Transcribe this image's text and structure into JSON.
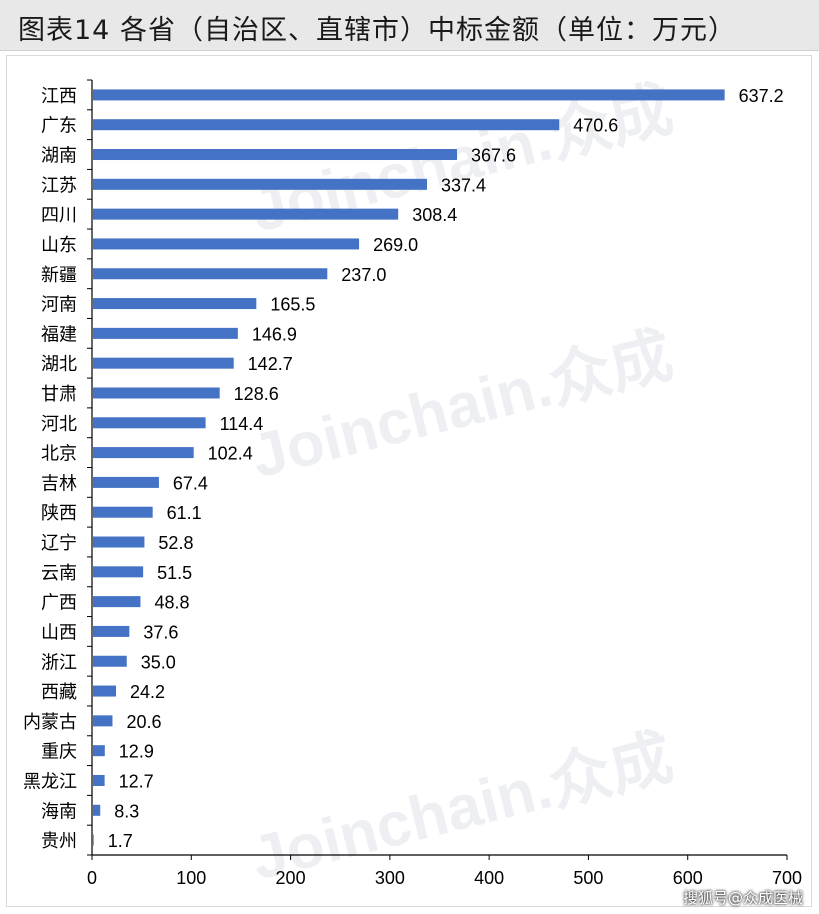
{
  "header": {
    "title": "图表14 各省（自治区、直辖市）中标金额（单位：万元）"
  },
  "watermark": {
    "text": "Joinchain.众成"
  },
  "credit": "搜狐号@众成医械",
  "chart_data": {
    "type": "bar",
    "orientation": "horizontal",
    "categories": [
      "江西",
      "广东",
      "湖南",
      "江苏",
      "四川",
      "山东",
      "新疆",
      "河南",
      "福建",
      "湖北",
      "甘肃",
      "河北",
      "北京",
      "吉林",
      "陕西",
      "辽宁",
      "云南",
      "广西",
      "山西",
      "浙江",
      "西藏",
      "内蒙古",
      "重庆",
      "黑龙江",
      "海南",
      "贵州"
    ],
    "values": [
      637.2,
      470.6,
      367.6,
      337.4,
      308.4,
      269.0,
      237.0,
      165.5,
      146.9,
      142.7,
      128.6,
      114.4,
      102.4,
      67.4,
      61.1,
      52.8,
      51.5,
      48.8,
      37.6,
      35.0,
      24.2,
      20.6,
      12.9,
      12.7,
      8.3,
      1.7
    ],
    "value_labels": [
      "637.2",
      "470.6",
      "367.6",
      "337.4",
      "308.4",
      "269.0",
      "237.0",
      "165.5",
      "146.9",
      "142.7",
      "128.6",
      "114.4",
      "102.4",
      "67.4",
      "61.1",
      "52.8",
      "51.5",
      "48.8",
      "37.6",
      "35.0",
      "24.2",
      "20.6",
      "12.9",
      "12.7",
      "8.3",
      "1.7"
    ],
    "xlim": [
      0,
      700
    ],
    "xticks": [
      0,
      100,
      200,
      300,
      400,
      500,
      600,
      700
    ],
    "bar_color": "#4472c4",
    "grid": false
  }
}
